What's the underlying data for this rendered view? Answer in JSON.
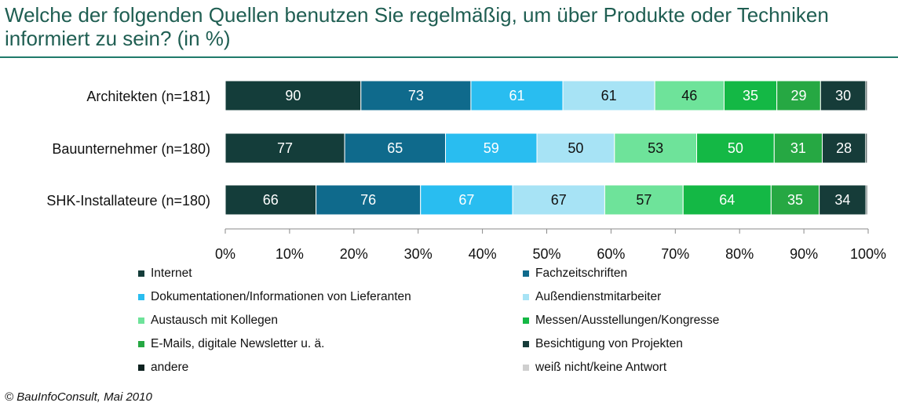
{
  "title": "Welche der folgenden Quellen benutzen Sie regelmäßig, um über Produkte oder Techniken informiert zu sein? (in %)",
  "footer": "© BauInfoConsult,  Mai 2010",
  "chart_data": {
    "type": "bar",
    "orientation": "horizontal",
    "stacked": "100%",
    "categories": [
      "Architekten (n=181)",
      "Bauunternehmer (n=180)",
      "SHK-Installateure (n=180)"
    ],
    "series": [
      {
        "name": "Internet",
        "color": "#143d3a",
        "values": [
          90,
          77,
          66
        ]
      },
      {
        "name": "Fachzeitschriften",
        "color": "#0f6a8c",
        "values": [
          73,
          65,
          76
        ]
      },
      {
        "name": "Dokumentationen/Informationen  von Lieferanten",
        "color": "#29bdf0",
        "values": [
          61,
          59,
          67
        ]
      },
      {
        "name": "Außendienstmitarbeiter",
        "color": "#a7e3f5",
        "values": [
          61,
          50,
          67
        ]
      },
      {
        "name": "Austausch mit Kollegen",
        "color": "#6ee39a",
        "values": [
          46,
          53,
          57
        ]
      },
      {
        "name": "Messen/Ausstellungen/Kongresse",
        "color": "#14b845",
        "values": [
          35,
          50,
          64
        ]
      },
      {
        "name": "E-Mails, digitale Newsletter u. ä.",
        "color": "#26a843",
        "values": [
          29,
          31,
          35
        ]
      },
      {
        "name": "Besichtigung von Projekten",
        "color": "#163c39",
        "values": [
          30,
          28,
          34
        ]
      },
      {
        "name": "andere",
        "color": "#0e2220",
        "values": [
          1,
          1,
          1
        ]
      },
      {
        "name": "weiß nicht/keine Antwort",
        "color": "#cfcfcf",
        "values": [
          0.6,
          0.6,
          0.6
        ]
      }
    ],
    "label_colors": [
      "#ffffff",
      "#ffffff",
      "#ffffff",
      "#111111",
      "#111111",
      "#ffffff",
      "#ffffff",
      "#ffffff",
      "#ffffff",
      "#111111"
    ],
    "x_ticks": [
      "0%",
      "10%",
      "20%",
      "30%",
      "40%",
      "50%",
      "60%",
      "70%",
      "80%",
      "90%",
      "100%"
    ],
    "xlim": [
      0,
      100
    ],
    "grid": false,
    "legend_position": "bottom"
  }
}
